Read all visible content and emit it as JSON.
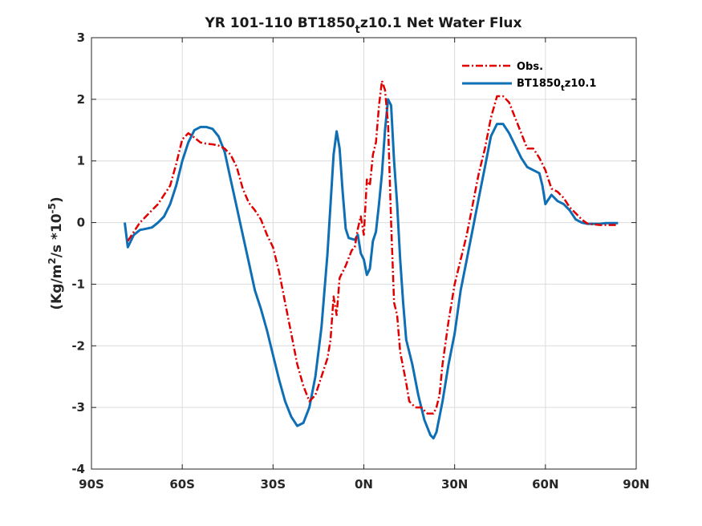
{
  "chart_data": {
    "type": "line",
    "title": {
      "prefix": "YR 101-110 BT1850",
      "subscript": "t",
      "suffix": "z10.1  Net Water Flux"
    },
    "ylabel": {
      "open": "(Kg/m",
      "exp1": "2",
      "mid": "/s *10",
      "exp2": "-5",
      "close": ")"
    },
    "xlim": [
      -90,
      90
    ],
    "ylim": [
      -4,
      3
    ],
    "grid": true,
    "legend_position": "top-right",
    "x_ticks": [
      {
        "value": -90,
        "label": "90S"
      },
      {
        "value": -60,
        "label": "60S"
      },
      {
        "value": -30,
        "label": "30S"
      },
      {
        "value": 0,
        "label": "0N"
      },
      {
        "value": 30,
        "label": "30N"
      },
      {
        "value": 60,
        "label": "60N"
      },
      {
        "value": 90,
        "label": "90N"
      }
    ],
    "y_ticks": [
      {
        "value": 3,
        "label": "3"
      },
      {
        "value": 2,
        "label": "2"
      },
      {
        "value": 1,
        "label": "1"
      },
      {
        "value": 0,
        "label": "0"
      },
      {
        "value": -1,
        "label": "-1"
      },
      {
        "value": -2,
        "label": "-2"
      },
      {
        "value": -3,
        "label": "-3"
      },
      {
        "value": -4,
        "label": "-4"
      }
    ],
    "series": [
      {
        "name": "Obs.",
        "color": "#e00000",
        "style": "dash-dot",
        "points": [
          [
            -78,
            -0.3
          ],
          [
            -76,
            -0.15
          ],
          [
            -74,
            0.0
          ],
          [
            -72,
            0.1
          ],
          [
            -70,
            0.2
          ],
          [
            -68,
            0.3
          ],
          [
            -66,
            0.45
          ],
          [
            -64,
            0.6
          ],
          [
            -62,
            0.95
          ],
          [
            -60,
            1.35
          ],
          [
            -58,
            1.45
          ],
          [
            -56,
            1.38
          ],
          [
            -54,
            1.3
          ],
          [
            -52,
            1.28
          ],
          [
            -50,
            1.27
          ],
          [
            -48,
            1.25
          ],
          [
            -46,
            1.2
          ],
          [
            -44,
            1.1
          ],
          [
            -42,
            0.9
          ],
          [
            -40,
            0.55
          ],
          [
            -38,
            0.32
          ],
          [
            -36,
            0.2
          ],
          [
            -34,
            0.05
          ],
          [
            -32,
            -0.2
          ],
          [
            -30,
            -0.4
          ],
          [
            -28,
            -0.8
          ],
          [
            -26,
            -1.3
          ],
          [
            -24,
            -1.8
          ],
          [
            -22,
            -2.3
          ],
          [
            -20,
            -2.65
          ],
          [
            -18,
            -2.9
          ],
          [
            -16,
            -2.8
          ],
          [
            -14,
            -2.5
          ],
          [
            -12,
            -2.2
          ],
          [
            -11,
            -1.9
          ],
          [
            -10,
            -1.2
          ],
          [
            -9,
            -1.5
          ],
          [
            -8,
            -0.9
          ],
          [
            -6,
            -0.7
          ],
          [
            -4,
            -0.45
          ],
          [
            -3,
            -0.4
          ],
          [
            -2,
            -0.1
          ],
          [
            -1,
            0.1
          ],
          [
            0,
            -0.2
          ],
          [
            1,
            0.7
          ],
          [
            2,
            0.6
          ],
          [
            3,
            1.1
          ],
          [
            4,
            1.3
          ],
          [
            5,
            1.9
          ],
          [
            6,
            2.3
          ],
          [
            7,
            2.15
          ],
          [
            8,
            1.6
          ],
          [
            9,
            0.0
          ],
          [
            10,
            -1.3
          ],
          [
            11,
            -1.5
          ],
          [
            12,
            -2.1
          ],
          [
            14,
            -2.6
          ],
          [
            15,
            -2.9
          ],
          [
            17,
            -3.0
          ],
          [
            19,
            -3.0
          ],
          [
            21,
            -3.1
          ],
          [
            23,
            -3.1
          ],
          [
            24,
            -3.0
          ],
          [
            25,
            -2.8
          ],
          [
            26,
            -2.3
          ],
          [
            28,
            -1.6
          ],
          [
            30,
            -1.0
          ],
          [
            32,
            -0.6
          ],
          [
            34,
            -0.2
          ],
          [
            36,
            0.3
          ],
          [
            38,
            0.8
          ],
          [
            40,
            1.2
          ],
          [
            42,
            1.7
          ],
          [
            44,
            2.05
          ],
          [
            46,
            2.05
          ],
          [
            48,
            1.95
          ],
          [
            50,
            1.7
          ],
          [
            52,
            1.45
          ],
          [
            54,
            1.2
          ],
          [
            56,
            1.2
          ],
          [
            58,
            1.05
          ],
          [
            60,
            0.85
          ],
          [
            62,
            0.55
          ],
          [
            64,
            0.5
          ],
          [
            66,
            0.4
          ],
          [
            68,
            0.25
          ],
          [
            70,
            0.15
          ],
          [
            72,
            0.05
          ],
          [
            74,
            -0.02
          ],
          [
            76,
            -0.03
          ],
          [
            78,
            -0.04
          ],
          [
            80,
            -0.04
          ],
          [
            84,
            -0.04
          ]
        ]
      },
      {
        "name": "BT1850",
        "name_subscript": "t",
        "name_suffix": "z10.1",
        "color": "#0f6fb5",
        "style": "solid",
        "points": [
          [
            -79,
            0.0
          ],
          [
            -78,
            -0.4
          ],
          [
            -76,
            -0.2
          ],
          [
            -74,
            -0.12
          ],
          [
            -72,
            -0.1
          ],
          [
            -70,
            -0.08
          ],
          [
            -68,
            0.0
          ],
          [
            -66,
            0.1
          ],
          [
            -64,
            0.3
          ],
          [
            -62,
            0.6
          ],
          [
            -60,
            1.0
          ],
          [
            -58,
            1.3
          ],
          [
            -56,
            1.5
          ],
          [
            -54,
            1.55
          ],
          [
            -52,
            1.55
          ],
          [
            -50,
            1.52
          ],
          [
            -48,
            1.4
          ],
          [
            -46,
            1.15
          ],
          [
            -44,
            0.7
          ],
          [
            -42,
            0.25
          ],
          [
            -40,
            -0.2
          ],
          [
            -38,
            -0.65
          ],
          [
            -36,
            -1.1
          ],
          [
            -34,
            -1.4
          ],
          [
            -32,
            -1.75
          ],
          [
            -30,
            -2.15
          ],
          [
            -28,
            -2.55
          ],
          [
            -26,
            -2.9
          ],
          [
            -24,
            -3.15
          ],
          [
            -22,
            -3.3
          ],
          [
            -20,
            -3.25
          ],
          [
            -18,
            -3.0
          ],
          [
            -16,
            -2.5
          ],
          [
            -14,
            -1.7
          ],
          [
            -12,
            -0.5
          ],
          [
            -10,
            1.1
          ],
          [
            -9,
            1.48
          ],
          [
            -8,
            1.2
          ],
          [
            -7,
            0.5
          ],
          [
            -6,
            -0.1
          ],
          [
            -5,
            -0.25
          ],
          [
            -3,
            -0.28
          ],
          [
            -2,
            -0.2
          ],
          [
            -1,
            -0.5
          ],
          [
            0,
            -0.6
          ],
          [
            1,
            -0.85
          ],
          [
            2,
            -0.75
          ],
          [
            3,
            -0.3
          ],
          [
            4,
            -0.15
          ],
          [
            5,
            0.3
          ],
          [
            6,
            0.8
          ],
          [
            7,
            1.5
          ],
          [
            8,
            2.0
          ],
          [
            9,
            1.9
          ],
          [
            10,
            1.0
          ],
          [
            11,
            0.3
          ],
          [
            12,
            -0.6
          ],
          [
            13,
            -1.3
          ],
          [
            14,
            -1.9
          ],
          [
            16,
            -2.3
          ],
          [
            18,
            -2.8
          ],
          [
            20,
            -3.2
          ],
          [
            22,
            -3.45
          ],
          [
            23,
            -3.5
          ],
          [
            24,
            -3.4
          ],
          [
            26,
            -2.9
          ],
          [
            28,
            -2.3
          ],
          [
            30,
            -1.8
          ],
          [
            32,
            -1.1
          ],
          [
            34,
            -0.6
          ],
          [
            36,
            -0.1
          ],
          [
            38,
            0.4
          ],
          [
            40,
            0.9
          ],
          [
            42,
            1.4
          ],
          [
            44,
            1.6
          ],
          [
            46,
            1.6
          ],
          [
            48,
            1.45
          ],
          [
            50,
            1.25
          ],
          [
            52,
            1.05
          ],
          [
            54,
            0.9
          ],
          [
            56,
            0.85
          ],
          [
            58,
            0.8
          ],
          [
            59,
            0.6
          ],
          [
            60,
            0.3
          ],
          [
            62,
            0.45
          ],
          [
            64,
            0.35
          ],
          [
            66,
            0.3
          ],
          [
            68,
            0.2
          ],
          [
            70,
            0.05
          ],
          [
            72,
            0.0
          ],
          [
            74,
            -0.02
          ],
          [
            76,
            -0.02
          ],
          [
            78,
            -0.02
          ],
          [
            80,
            -0.01
          ],
          [
            84,
            -0.01
          ]
        ]
      }
    ]
  }
}
